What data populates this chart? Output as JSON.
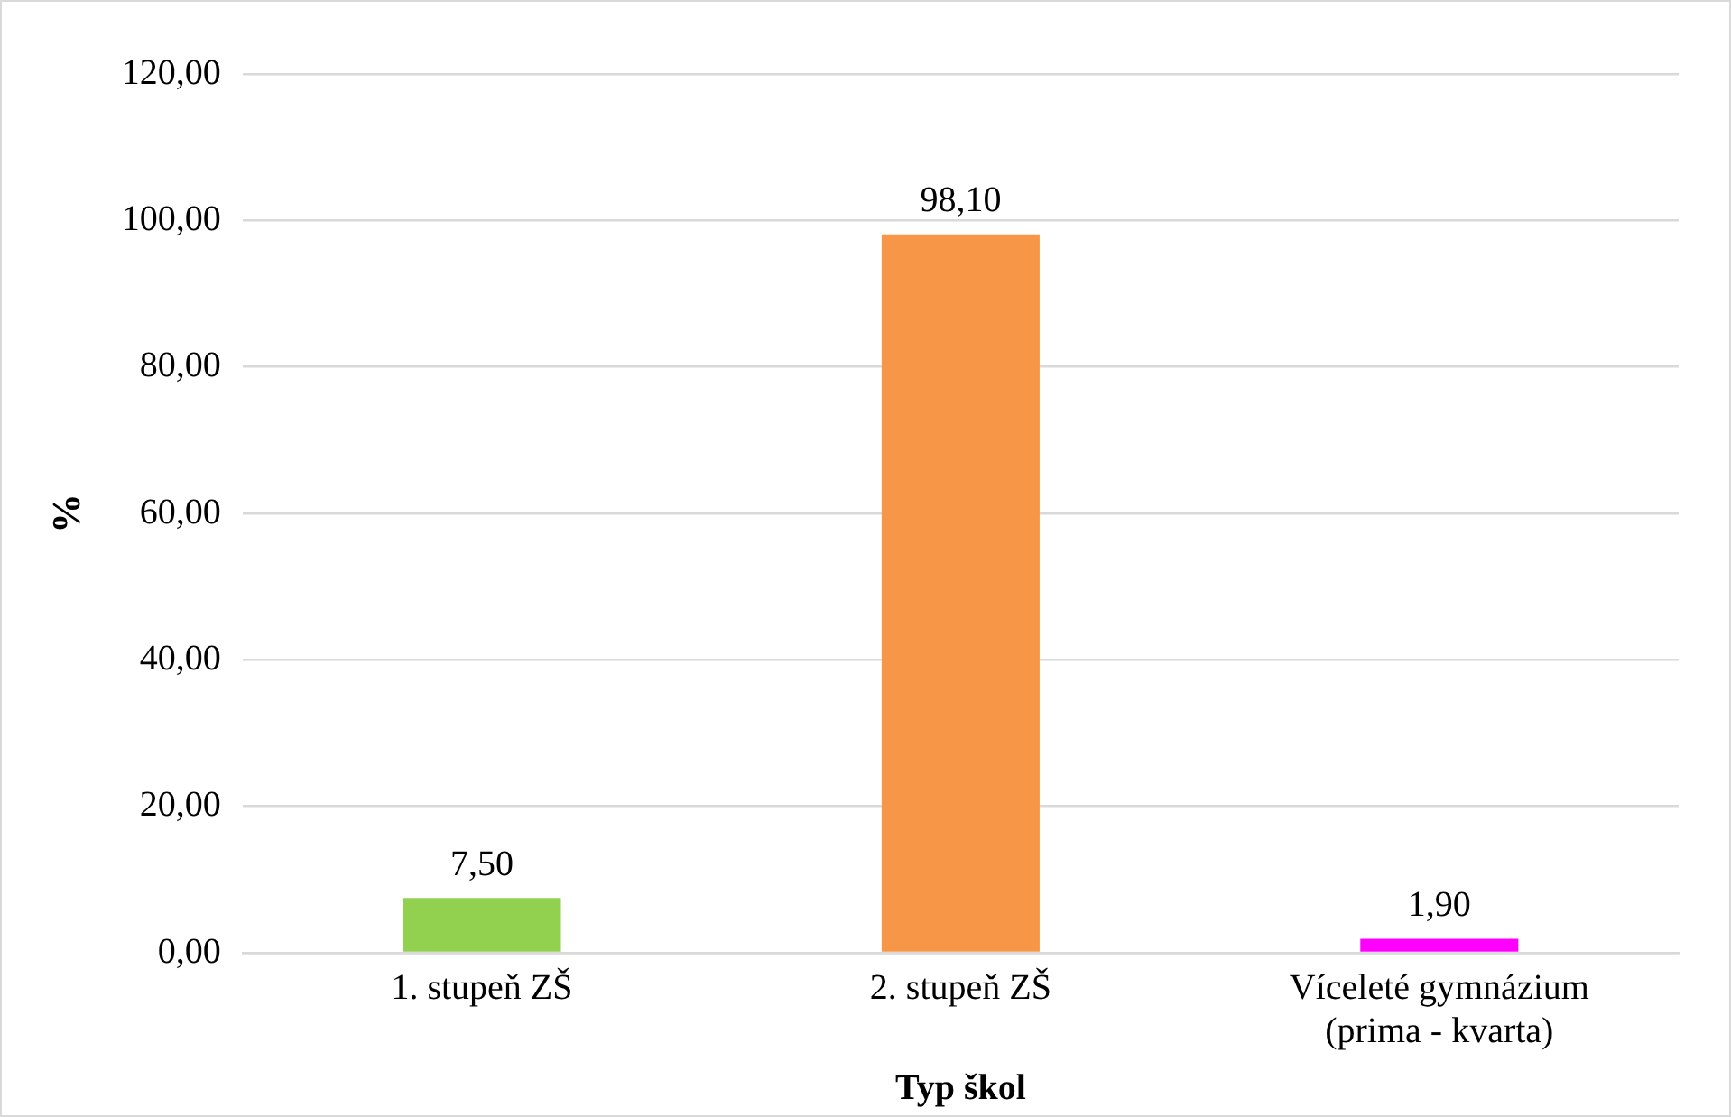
{
  "chart_data": {
    "type": "bar",
    "xlabel": "Typ škol",
    "ylabel": "%",
    "categories": [
      "1. stupeň ZŠ",
      "2. stupeň ZŠ",
      "Víceleté gymnázium\n(prima - kvarta)"
    ],
    "values": [
      7.5,
      98.1,
      1.9
    ],
    "colors": [
      "#92d050",
      "#f79646",
      "#ff00ff"
    ],
    "value_labels": [
      "7,50",
      "98,10",
      "1,90"
    ],
    "ylim": [
      0,
      120
    ],
    "yticks": [
      {
        "value": 0,
        "label": "0,00"
      },
      {
        "value": 20,
        "label": "20,00"
      },
      {
        "value": 40,
        "label": "40,00"
      },
      {
        "value": 60,
        "label": "60,00"
      },
      {
        "value": 80,
        "label": "80,00"
      },
      {
        "value": 100,
        "label": "100,00"
      },
      {
        "value": 120,
        "label": "120,00"
      }
    ],
    "grid": "y",
    "legend": false
  }
}
